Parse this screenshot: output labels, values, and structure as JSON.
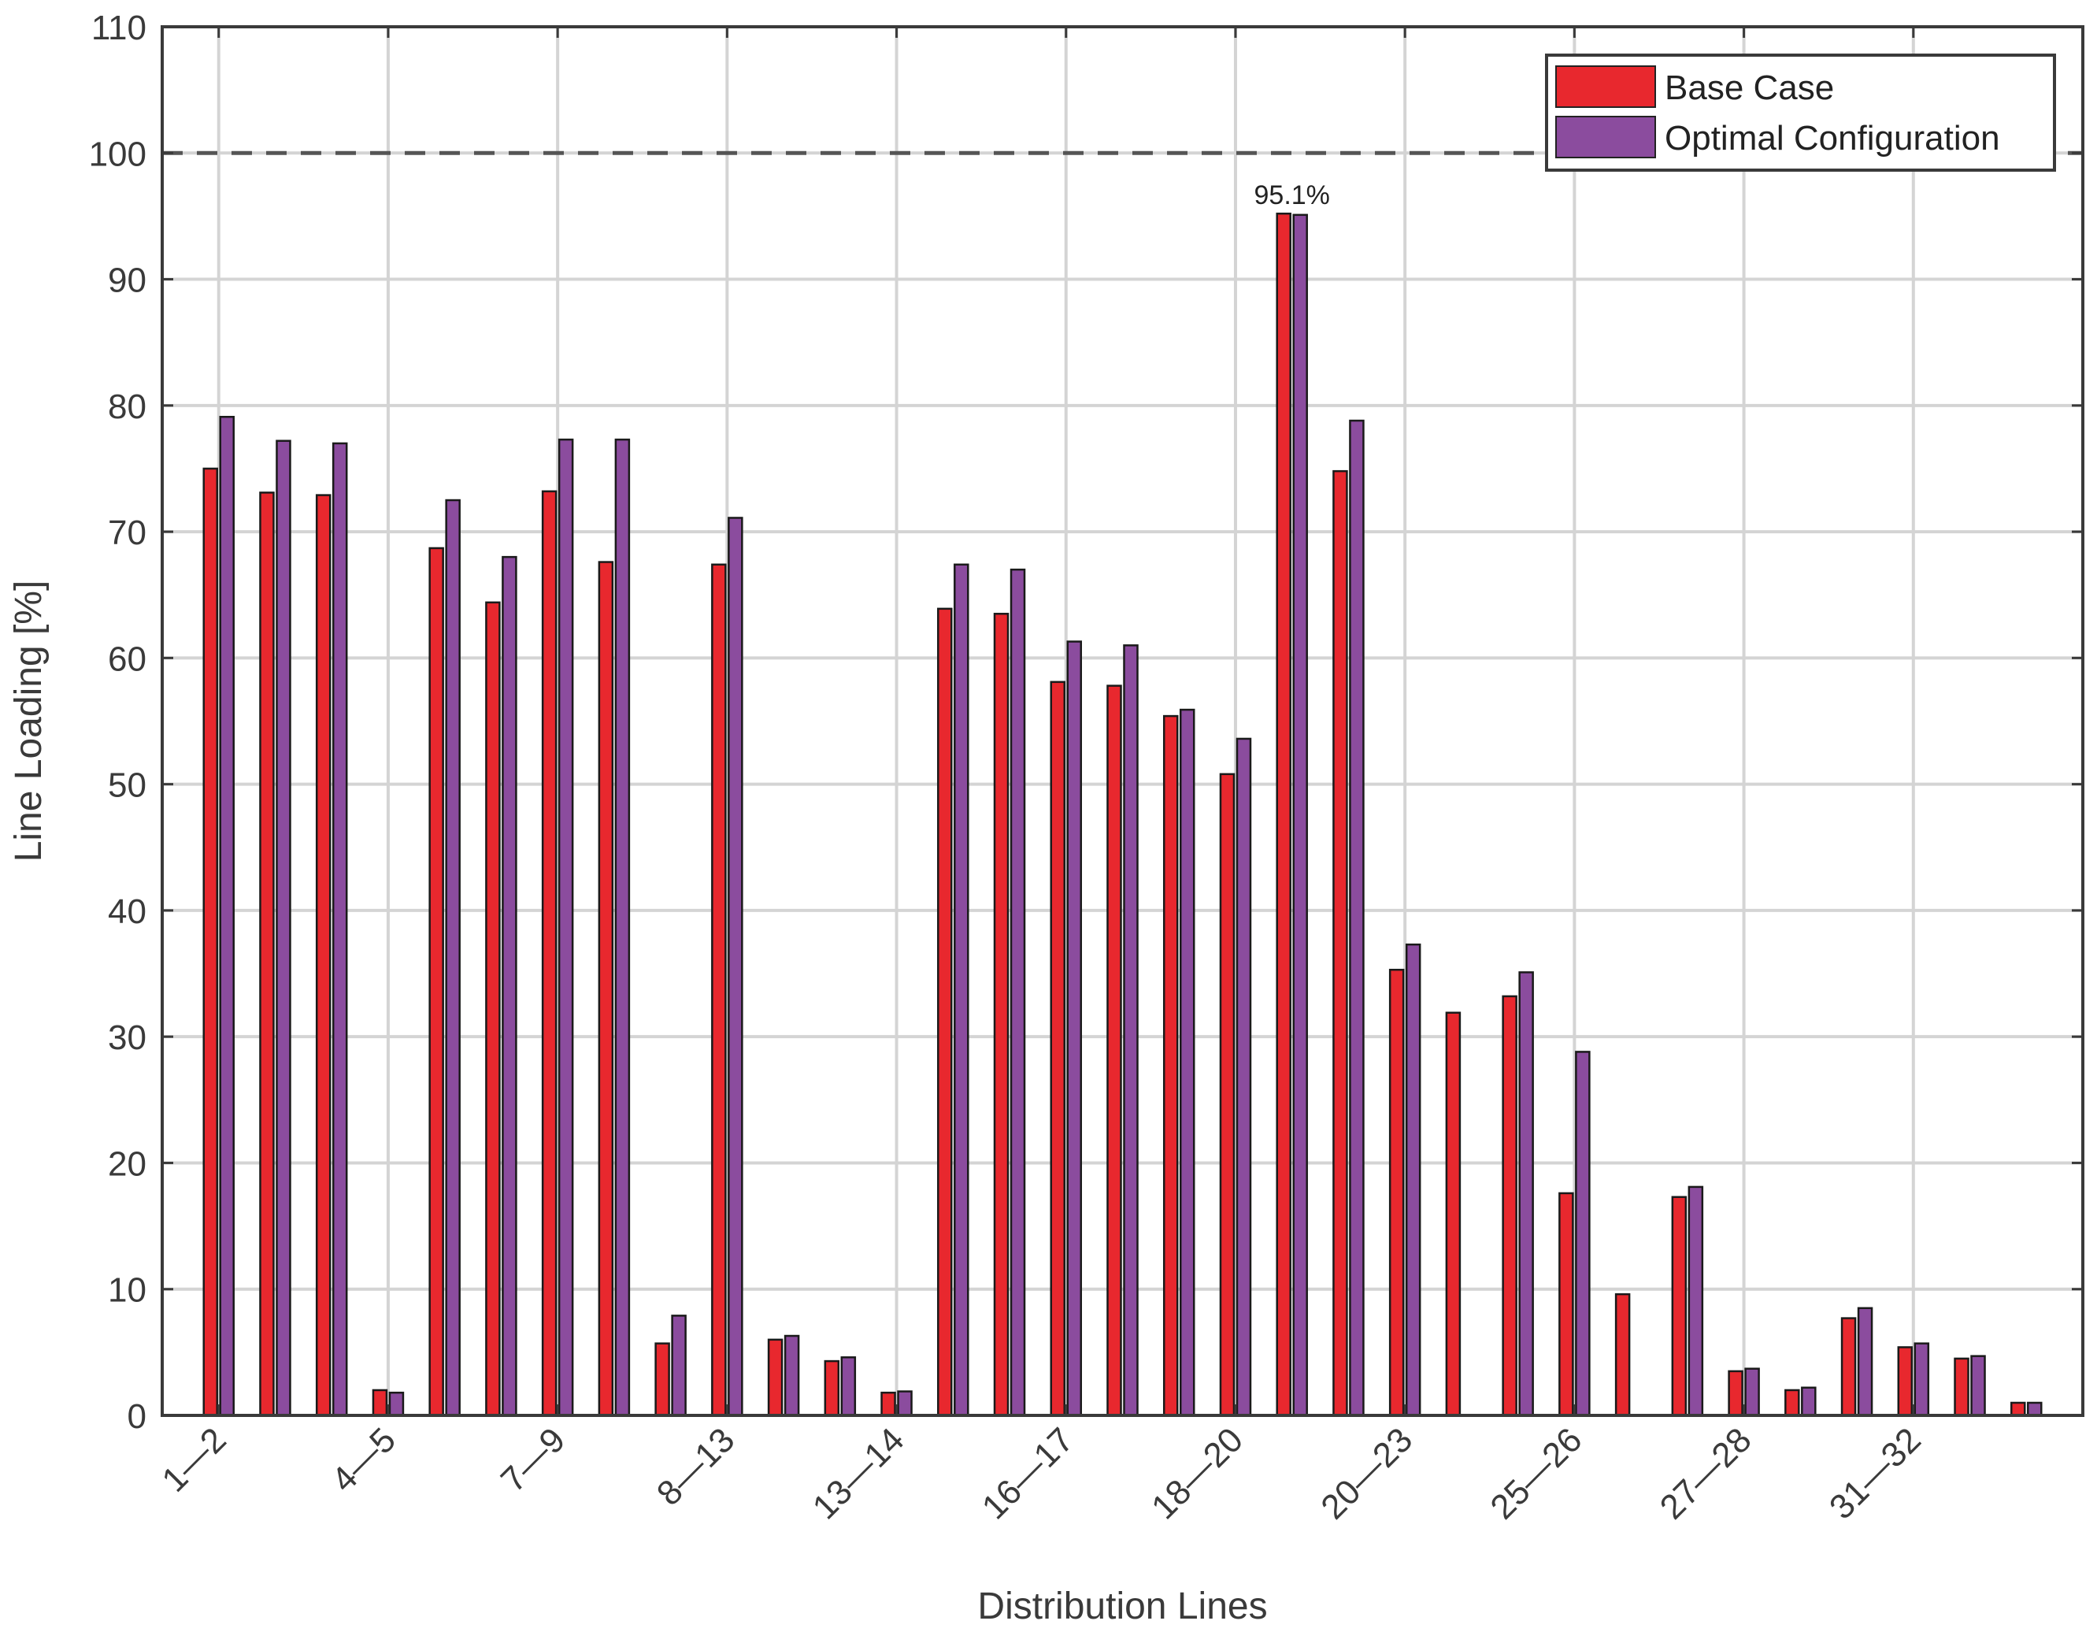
{
  "chart_data": {
    "type": "bar",
    "xlabel": "Distribution Lines",
    "ylabel": "Line Loading [%]",
    "ylim": [
      0,
      110
    ],
    "yticks": [
      0,
      10,
      20,
      30,
      40,
      50,
      60,
      70,
      80,
      90,
      100,
      110
    ],
    "grid": true,
    "legend_position": "top-right",
    "limit_line": 100,
    "tick_labels": [
      "1—2",
      "4—5",
      "7—9",
      "8—13",
      "13—14",
      "16—17",
      "18—20",
      "20—23",
      "25—26",
      "27—28",
      "31—32"
    ],
    "tick_every": 3,
    "categories_count": 33,
    "series": [
      {
        "name": "Base Case",
        "color": "#e8282e",
        "values": [
          75.0,
          73.1,
          72.9,
          2.0,
          68.7,
          64.4,
          73.2,
          67.6,
          5.7,
          67.4,
          6.0,
          4.3,
          1.8,
          63.9,
          63.5,
          58.1,
          57.8,
          55.4,
          50.8,
          95.2,
          74.8,
          35.3,
          31.9,
          33.2,
          17.6,
          9.6,
          17.3,
          3.5,
          2.0,
          7.7,
          5.4,
          4.5,
          1.0
        ]
      },
      {
        "name": "Optimal Configuration",
        "color": "#8b4c9e",
        "values": [
          79.1,
          77.2,
          77.0,
          1.8,
          72.5,
          68.0,
          77.3,
          77.3,
          7.9,
          71.1,
          6.3,
          4.6,
          1.9,
          67.4,
          67.0,
          61.3,
          61.0,
          55.9,
          53.6,
          95.1,
          78.8,
          37.3,
          0,
          35.1,
          28.8,
          0,
          18.1,
          3.7,
          2.2,
          8.5,
          5.7,
          4.7,
          1.0
        ]
      }
    ],
    "annotation": {
      "text": "95.1%",
      "category_index": 19
    }
  }
}
